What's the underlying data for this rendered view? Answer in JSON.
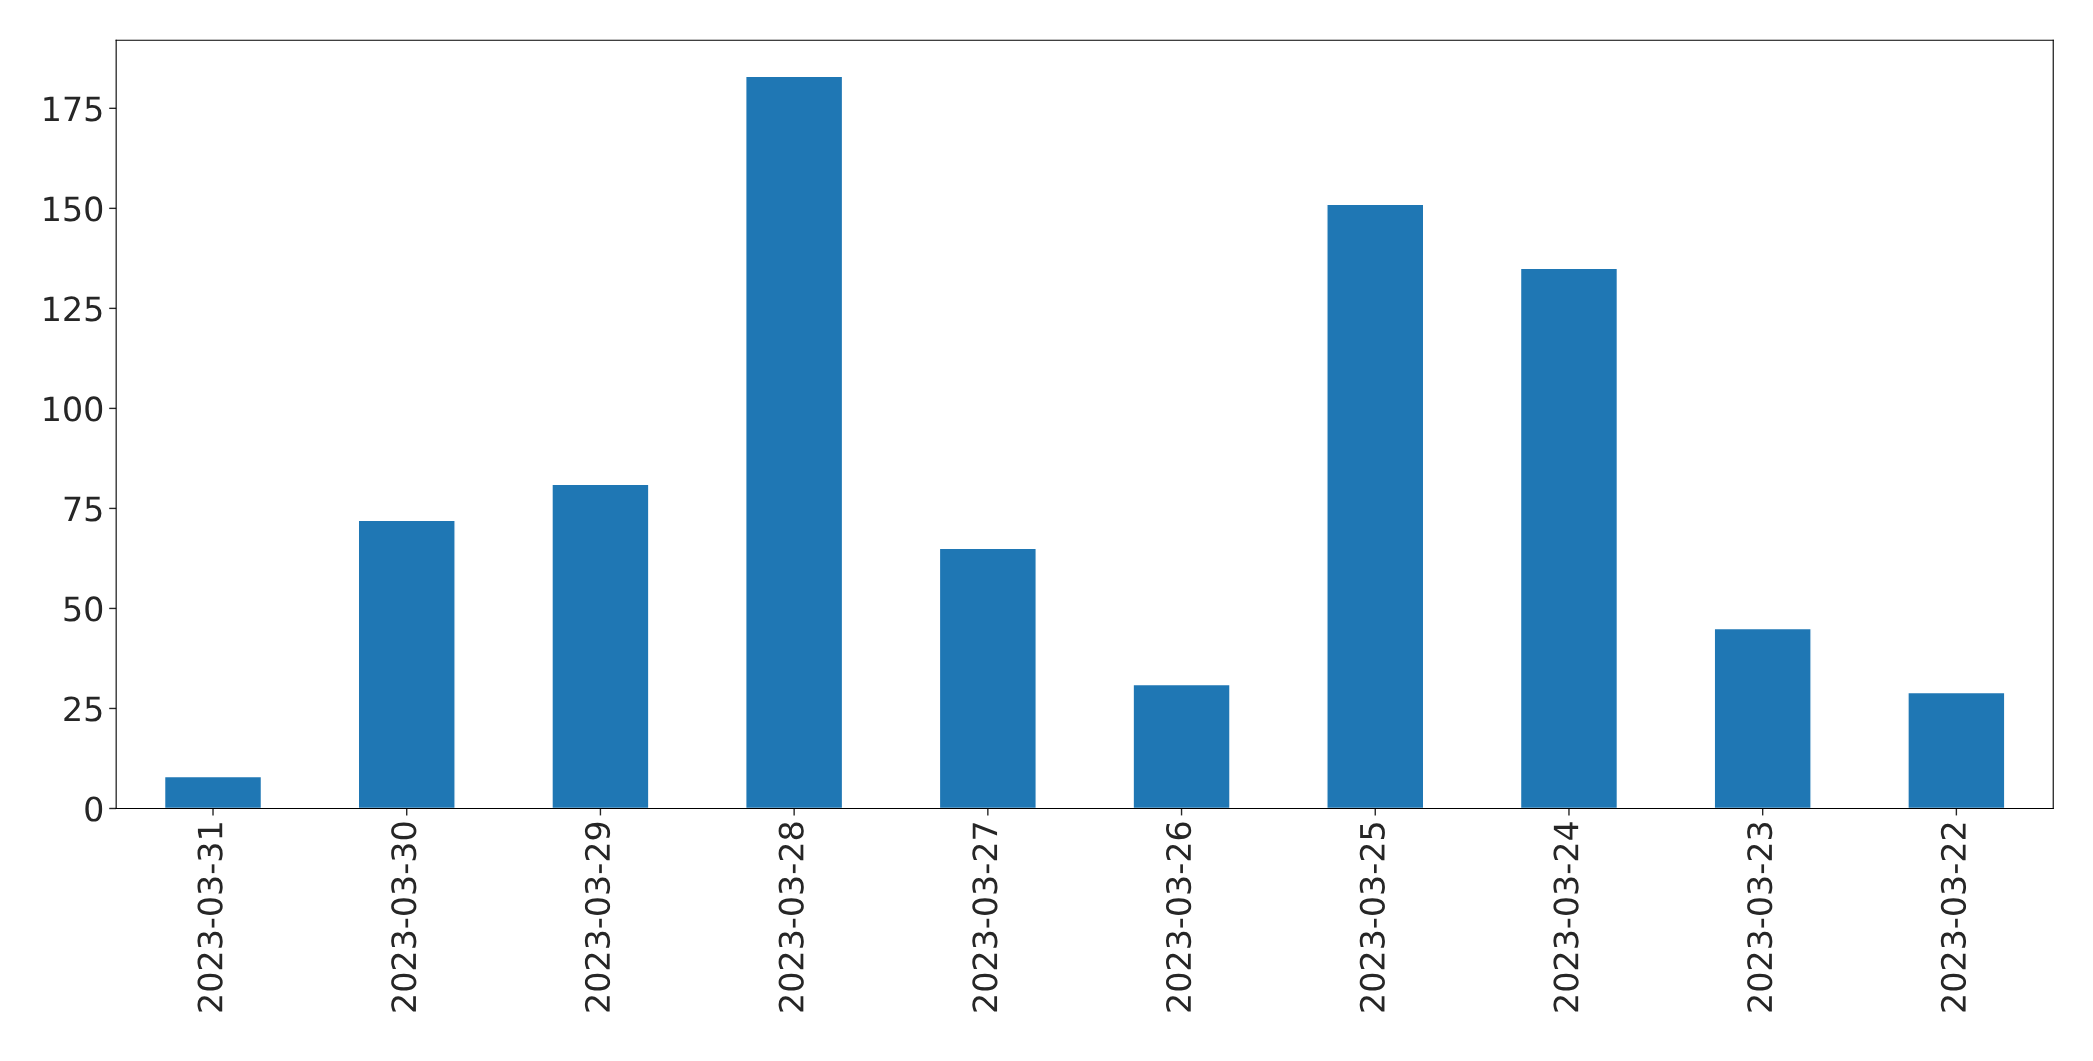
{
  "chart_data": {
    "type": "bar",
    "categories": [
      "2023-03-31",
      "2023-03-30",
      "2023-03-29",
      "2023-03-28",
      "2023-03-27",
      "2023-03-26",
      "2023-03-25",
      "2023-03-24",
      "2023-03-23",
      "2023-03-22"
    ],
    "values": [
      8,
      72,
      81,
      183,
      65,
      31,
      151,
      135,
      45,
      29
    ],
    "color": "#1f77b4",
    "ylim": [
      0,
      192
    ],
    "yticks": [
      0,
      25,
      50,
      75,
      100,
      125,
      150,
      175
    ]
  }
}
